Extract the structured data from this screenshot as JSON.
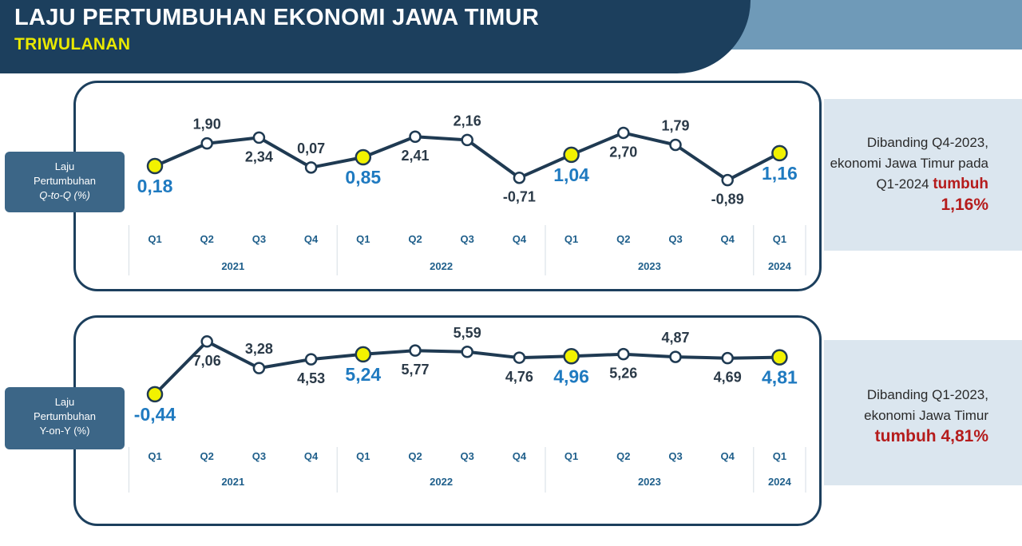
{
  "header": {
    "title": "LAJU PERTUMBUHAN EKONOMI JAWA TIMUR",
    "subtitle": "TRIWULANAN"
  },
  "colors": {
    "navy": "#1c3f5d",
    "line": "#1f3a52",
    "highlight_marker": "#f2f200",
    "highlight_value": "#1f7ac0",
    "normal_value": "#2b3a48",
    "axis_text": "#1f5f8b",
    "emphasis": "#b51c1c"
  },
  "qq": {
    "label_line1": "Laju",
    "label_line2": "Pertumbuhan",
    "label_line3": "Q-to-Q (%)",
    "info_line1": "Dibanding Q4-2023,",
    "info_line2": "ekonomi Jawa Timur pada",
    "info_line3_prefix": "Q1-2024 ",
    "info_em": "tumbuh",
    "info_big": "1,16%"
  },
  "yy": {
    "label_line1": "Laju",
    "label_line2": "Pertumbuhan",
    "label_line3": "Y-on-Y (%)",
    "info_line1": "Dibanding Q1-2023,",
    "info_line2": "ekonomi Jawa Timur",
    "info_em": "tumbuh 4,81%"
  },
  "chart_data": [
    {
      "type": "line",
      "categories": [
        "Q1",
        "Q2",
        "Q3",
        "Q4",
        "Q1",
        "Q2",
        "Q3",
        "Q4",
        "Q1",
        "Q2",
        "Q3",
        "Q4",
        "Q1"
      ],
      "groups": [
        {
          "label": "2021",
          "count": 4
        },
        {
          "label": "2022",
          "count": 4
        },
        {
          "label": "2023",
          "count": 4
        },
        {
          "label": "2024",
          "count": 1
        }
      ],
      "series": [
        {
          "values": [
            0.18,
            1.9,
            2.34,
            0.07,
            0.85,
            2.41,
            2.16,
            -0.71,
            1.04,
            2.7,
            1.79,
            -0.89,
            1.16
          ],
          "labels": [
            "0,18",
            "1,90",
            "2,34",
            "0,07",
            "0,85",
            "2,41",
            "2,16",
            "-0,71",
            "1,04",
            "2,70",
            "1,79",
            "-0,89",
            "1,16"
          ]
        }
      ],
      "highlight_indices": [
        0,
        4,
        8,
        12
      ]
    },
    {
      "type": "line",
      "categories": [
        "Q1",
        "Q2",
        "Q3",
        "Q4",
        "Q1",
        "Q2",
        "Q3",
        "Q4",
        "Q1",
        "Q2",
        "Q3",
        "Q4",
        "Q1"
      ],
      "groups": [
        {
          "label": "2021",
          "count": 4
        },
        {
          "label": "2022",
          "count": 4
        },
        {
          "label": "2023",
          "count": 4
        },
        {
          "label": "2024",
          "count": 1
        }
      ],
      "series": [
        {
          "values": [
            -0.44,
            7.06,
            3.28,
            4.53,
            5.24,
            5.77,
            5.59,
            4.76,
            4.96,
            5.26,
            4.87,
            4.69,
            4.81
          ],
          "labels": [
            "-0,44",
            "7,06",
            "3,28",
            "4,53",
            "5,24",
            "5,77",
            "5,59",
            "4,76",
            "4,96",
            "5,26",
            "4,87",
            "4,69",
            "4,81"
          ]
        }
      ],
      "highlight_indices": [
        0,
        4,
        8,
        12
      ]
    }
  ]
}
